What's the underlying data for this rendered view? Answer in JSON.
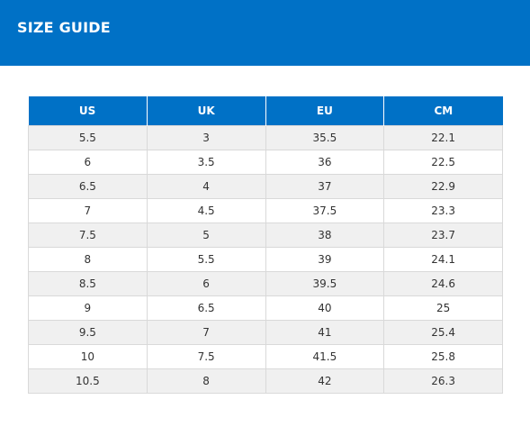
{
  "header": {
    "title": "SIZE GUIDE"
  },
  "colors": {
    "brand": "#0071c6",
    "row_alt": "#f0f0f0",
    "border": "#d9d9d9"
  },
  "size_table": {
    "columns": [
      "US",
      "UK",
      "EU",
      "CM"
    ],
    "rows": [
      [
        "5.5",
        "3",
        "35.5",
        "22.1"
      ],
      [
        "6",
        "3.5",
        "36",
        "22.5"
      ],
      [
        "6.5",
        "4",
        "37",
        "22.9"
      ],
      [
        "7",
        "4.5",
        "37.5",
        "23.3"
      ],
      [
        "7.5",
        "5",
        "38",
        "23.7"
      ],
      [
        "8",
        "5.5",
        "39",
        "24.1"
      ],
      [
        "8.5",
        "6",
        "39.5",
        "24.6"
      ],
      [
        "9",
        "6.5",
        "40",
        "25"
      ],
      [
        "9.5",
        "7",
        "41",
        "25.4"
      ],
      [
        "10",
        "7.5",
        "41.5",
        "25.8"
      ],
      [
        "10.5",
        "8",
        "42",
        "26.3"
      ]
    ]
  }
}
